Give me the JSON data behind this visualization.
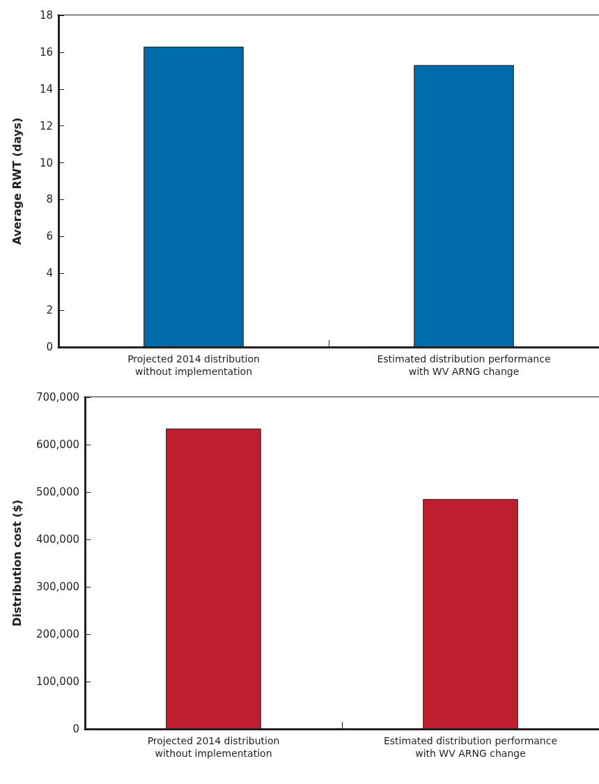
{
  "chart_data": [
    {
      "type": "bar",
      "ylabel": "Average RWT (days)",
      "categories": [
        "Projected 2014 distribution\nwithout implementation",
        "Estimated distribution performance\nwith WV ARNG change"
      ],
      "values": [
        16.3,
        15.3
      ],
      "color": "#006ca9",
      "ylim": [
        0,
        18
      ],
      "yticks": [
        0,
        2,
        4,
        6,
        8,
        10,
        12,
        14,
        16,
        18
      ]
    },
    {
      "type": "bar",
      "ylabel": "Distribution cost ($)",
      "categories": [
        "Projected 2014 distribution\nwithout implementation",
        "Estimated distribution performance\nwith WV ARNG change"
      ],
      "values": [
        634000,
        485000
      ],
      "color": "#be1e2d",
      "ylim": [
        0,
        700000
      ],
      "yticks": [
        0,
        {
          "value": 100000,
          "label": "100,000"
        },
        {
          "value": 200000,
          "label": "200,000"
        },
        {
          "value": 300000,
          "label": "300,000"
        },
        {
          "value": 400000,
          "label": "400,000"
        },
        {
          "value": 500000,
          "label": "500,000"
        },
        {
          "value": 600000,
          "label": "600,000"
        },
        {
          "value": 700000,
          "label": "700,000"
        }
      ]
    }
  ]
}
